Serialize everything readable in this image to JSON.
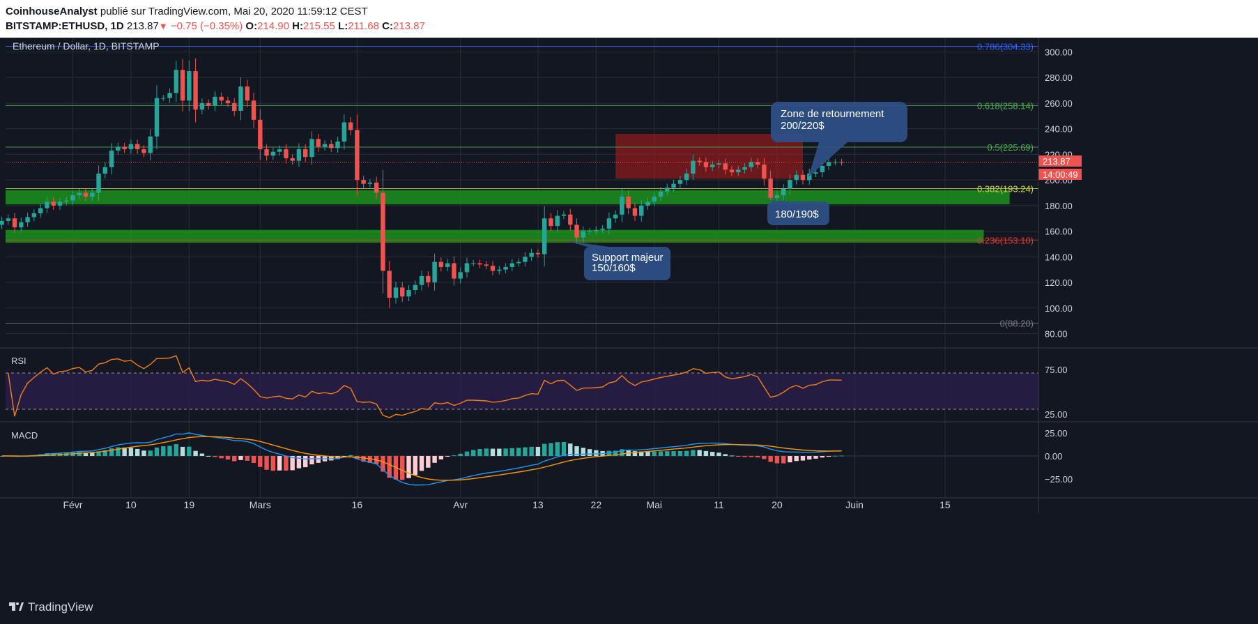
{
  "header": {
    "author": "CoinhouseAnalyst",
    "published_text": "publié sur TradingView.com, Mai 20, 2020 11:59:12 CEST",
    "symbol": "BITSTAMP:ETHUSD, 1D",
    "last": "213.87",
    "change_icon": "down-triangle-icon",
    "change": "−0.75 (−0.35%)",
    "o_label": "O:",
    "o": "214.90",
    "h_label": "H:",
    "h": "215.55",
    "l_label": "L:",
    "l": "211.68",
    "c_label": "C:",
    "c": "213.87"
  },
  "legend": {
    "title": "Ethereum / Dollar, 1D, BITSTAMP"
  },
  "price_tag": {
    "value": "213.87",
    "countdown": "14:00:49",
    "color": "#ef5350"
  },
  "colors": {
    "up": "#26a69a",
    "down": "#ef5350",
    "background": "#131722",
    "rsi_line": "#f57f17",
    "macd_line": "#2196f3",
    "signal_line": "#ff9800"
  },
  "fib_levels": [
    {
      "label": "0.786(304.33)",
      "value": 304.33,
      "color": "#2962ff"
    },
    {
      "label": "0.618(258.14)",
      "value": 258.14,
      "color": "#4caf50"
    },
    {
      "label": "0.5(225.69)",
      "value": 225.69,
      "color": "#4caf50"
    },
    {
      "label": "0.382(193.24)",
      "value": 193.24,
      "color": "#cddc39"
    },
    {
      "label": "0.236(153.10)",
      "value": 153.1,
      "color": "#e53935"
    },
    {
      "label": "0(88.20)",
      "value": 88.2,
      "color": "#787b86"
    }
  ],
  "zones": [
    {
      "name": "resistance",
      "from_date": "2020-04-25",
      "to_date": "2020-05-24",
      "low": 201,
      "high": 236,
      "color": "#b71c1c"
    },
    {
      "name": "support-180-190",
      "from_date": "2020-01-20",
      "to_date": "2020-06-25",
      "low": 181,
      "high": 192,
      "color": "#1b8a1b"
    },
    {
      "name": "support-150-160",
      "from_date": "2020-01-20",
      "to_date": "2020-06-21",
      "low": 151,
      "high": 161,
      "color": "#1b8a1b"
    }
  ],
  "callouts": [
    {
      "line1": "Zone de retournement",
      "line2": "200/220$"
    },
    {
      "line1": "180/190$",
      "line2": ""
    },
    {
      "line1": "Support majeur",
      "line2": "150/160$"
    }
  ],
  "panes": {
    "rsi_label": "RSI",
    "macd_label": "MACD"
  },
  "footer": {
    "brand": "TradingView"
  },
  "chart_data": {
    "type": "candlestick",
    "title": "Ethereum / Dollar, 1D, BITSTAMP",
    "price_axis": {
      "min": 70,
      "max": 310,
      "ticks": [
        "300.00",
        "280.00",
        "260.00",
        "240.00",
        "220.00",
        "200.00",
        "180.00",
        "160.00",
        "140.00",
        "120.00",
        "100.00",
        "80.00"
      ]
    },
    "time_axis": {
      "labels": [
        "Févr",
        "10",
        "19",
        "Mars",
        "16",
        "Avr",
        "13",
        "22",
        "Mai",
        "11",
        "20",
        "Juin",
        "15"
      ],
      "label_dates": [
        "2020-02-01",
        "2020-02-10",
        "2020-02-19",
        "2020-03-01",
        "2020-03-16",
        "2020-04-01",
        "2020-04-13",
        "2020-04-22",
        "2020-05-01",
        "2020-05-11",
        "2020-05-20",
        "2020-06-01",
        "2020-06-15"
      ]
    },
    "first_date": "2020-01-21",
    "close": [
      168,
      170,
      163,
      167,
      171,
      174,
      178,
      183,
      180,
      183,
      184,
      188,
      190,
      187,
      190,
      205,
      210,
      223,
      226,
      224,
      228,
      224,
      221,
      234,
      264,
      264,
      268,
      286,
      262,
      285,
      255,
      260,
      258,
      265,
      262,
      260,
      254,
      273,
      262,
      247,
      224,
      219,
      222,
      224,
      217,
      215,
      224,
      218,
      232,
      226,
      228,
      225,
      230,
      245,
      239,
      200,
      197,
      198,
      190,
      129,
      108,
      116,
      109,
      114,
      118,
      125,
      120,
      136,
      132,
      135,
      123,
      128,
      135,
      135,
      134,
      133,
      129,
      130,
      132,
      135,
      136,
      140,
      143,
      142,
      170,
      164,
      172,
      173,
      165,
      155,
      160,
      160,
      161,
      162,
      170,
      173,
      187,
      178,
      172,
      180,
      183,
      187,
      191,
      194,
      197,
      200,
      205,
      215,
      214,
      210,
      212,
      213,
      208,
      206,
      208,
      210,
      214,
      212,
      201,
      186,
      188,
      193,
      200,
      204,
      200,
      205,
      206,
      211,
      214,
      214,
      213.87
    ]
  }
}
